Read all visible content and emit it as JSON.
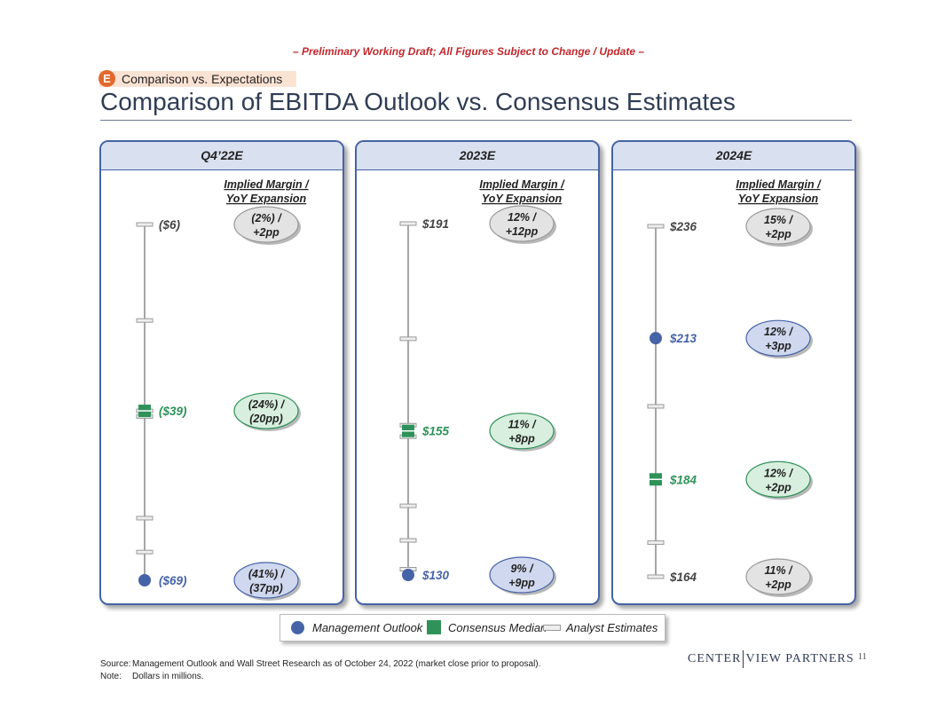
{
  "header": {
    "draft_note": "– Preliminary Working Draft; All Figures Subject to Change / Update –",
    "section_letter": "E",
    "section_label": "Comparison vs. Expectations",
    "title": "Comparison of EBITDA Outlook vs. Consensus Estimates"
  },
  "chart_data": {
    "type": "range",
    "units": "Dollars in millions",
    "margin_header": [
      "Implied Margin /",
      "YoY Expansion"
    ],
    "series": [
      "Management Outlook",
      "Consensus Median",
      "Analyst Estimates"
    ],
    "panels": [
      {
        "title": "Q4’22E",
        "ylim": [
          -69,
          -6
        ],
        "estimates": [
          -6,
          -23,
          -39,
          -40,
          -58,
          -64
        ],
        "high": {
          "value": -6,
          "label": "($6)",
          "margin": [
            "(2%) /",
            "+2pp"
          ]
        },
        "consensus": {
          "value": -39,
          "label": "($39)",
          "margin": [
            "(24%) /",
            "(20pp)"
          ]
        },
        "management": {
          "value": -69,
          "label": "($69)",
          "margin": [
            "(41%) /",
            "(37pp)"
          ]
        }
      },
      {
        "title": "2023E",
        "ylim": [
          130,
          191
        ],
        "estimates": [
          191,
          171,
          154,
          156,
          142,
          136,
          131
        ],
        "high": {
          "value": 191,
          "label": "$191",
          "margin": [
            "12% /",
            "+12pp"
          ]
        },
        "consensus": {
          "value": 155,
          "label": "$155",
          "margin": [
            "11% /",
            "+8pp"
          ]
        },
        "management": {
          "value": 130,
          "label": "$130",
          "margin": [
            "9% /",
            "+9pp"
          ]
        }
      },
      {
        "title": "2024E",
        "ylim": [
          164,
          236
        ],
        "estimates": [
          236,
          199,
          171,
          164
        ],
        "high": {
          "value": 236,
          "label": "$236",
          "margin": [
            "15% /",
            "+2pp"
          ]
        },
        "management": {
          "value": 213,
          "label": "$213",
          "margin": [
            "12% /",
            "+3pp"
          ]
        },
        "consensus": {
          "value": 184,
          "label": "$184",
          "margin": [
            "12% /",
            "+2pp"
          ]
        },
        "low": {
          "value": 164,
          "label": "$164",
          "margin": [
            "11% /",
            "+2pp"
          ]
        }
      }
    ]
  },
  "legend": {
    "management": "Management Outlook",
    "consensus": "Consensus Median",
    "analyst": "Analyst Estimates"
  },
  "footer": {
    "source_label": "Source:",
    "source_text": "Management Outlook and Wall Street Research as of October 24, 2022 (market close prior to proposal).",
    "note_label": "Note:",
    "note_text": "Dollars in millions.",
    "brand_left": "CENTER",
    "brand_right": "VIEW PARTNERS",
    "page_number": "11"
  },
  "colors": {
    "management": "#4663a8",
    "consensus": "#2e9259",
    "analyst": "#999999",
    "accent": "#c0282e"
  }
}
